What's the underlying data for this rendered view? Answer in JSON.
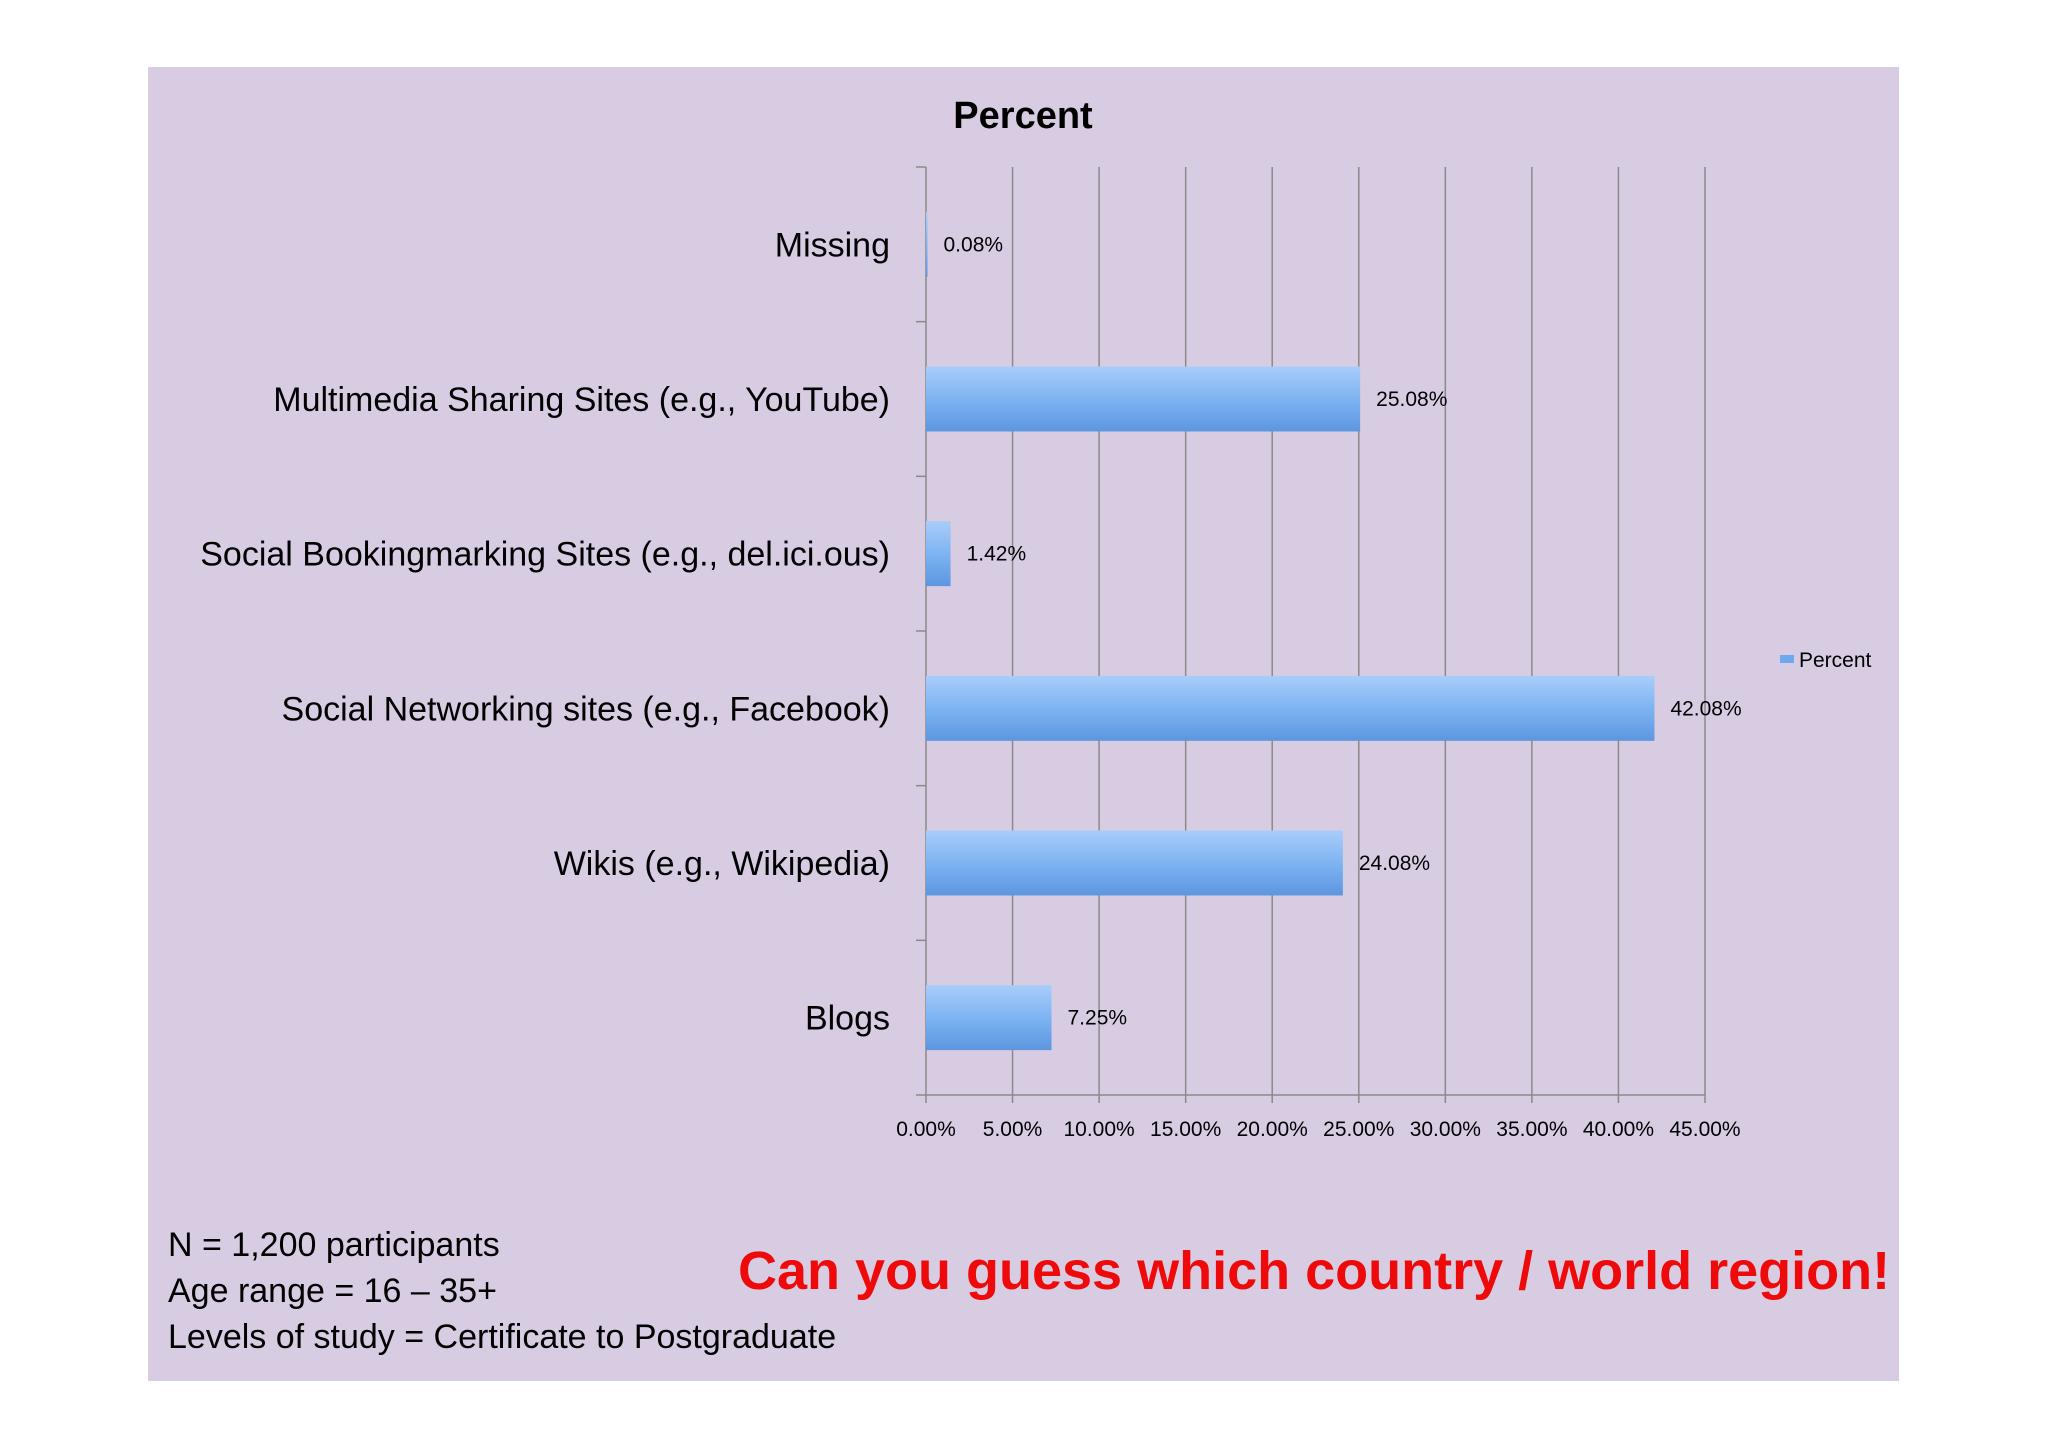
{
  "chart_data": {
    "type": "bar",
    "orientation": "horizontal",
    "title": "Percent",
    "categories": [
      "Missing",
      "Multimedia Sharing Sites (e.g., YouTube)",
      "Social Bookingmarking Sites (e.g.,  del.ici.ous)",
      "Social Networking sites (e.g., Facebook)",
      "Wikis (e.g., Wikipedia)",
      "Blogs"
    ],
    "series": [
      {
        "name": "Percent",
        "values": [
          0.08,
          25.08,
          1.42,
          42.08,
          24.08,
          7.25
        ],
        "data_labels": [
          "0.08%",
          "25.08%",
          "1.42%",
          "42.08%",
          "24.08%",
          "7.25%"
        ],
        "color": "#6fa8ee"
      }
    ],
    "xlim": [
      0,
      45
    ],
    "x_ticks": [
      "0.00%",
      "5.00%",
      "10.00%",
      "15.00%",
      "20.00%",
      "25.00%",
      "30.00%",
      "35.00%",
      "40.00%",
      "45.00%"
    ],
    "grid": "vertical",
    "legend": "right"
  },
  "notes": {
    "line1": "N = 1,200 participants",
    "line2": "Age range = 16 – 35+",
    "line3": "Levels of study = Certificate to Postgraduate"
  },
  "callout": "Can you guess which country / world region!",
  "colors": {
    "slide_background": "#d8cce3",
    "bar": "#6fa8ee",
    "callout": "#ee0a0a"
  }
}
